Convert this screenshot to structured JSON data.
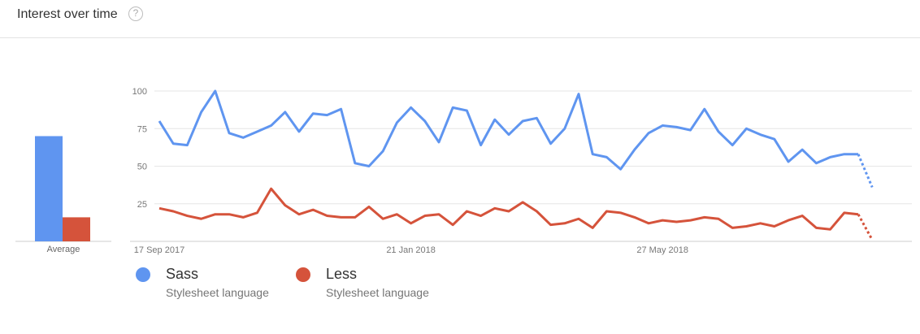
{
  "header": {
    "title": "Interest over time",
    "help_icon": "question-circle-icon"
  },
  "colors": {
    "sass": "#5f95f0",
    "less": "#d5533b",
    "grid": "#e6e6e6",
    "axis": "#cccccc"
  },
  "average": {
    "label": "Average",
    "values": [
      {
        "name": "Sass",
        "value": 70
      },
      {
        "name": "Less",
        "value": 16
      }
    ]
  },
  "legend": [
    {
      "name": "Sass",
      "sub": "Stylesheet language"
    },
    {
      "name": "Less",
      "sub": "Stylesheet language"
    }
  ],
  "chart_data": {
    "type": "line",
    "ylim": [
      0,
      100
    ],
    "yticks": [
      25,
      50,
      75,
      100
    ],
    "xtick_labels": [
      "17 Sep 2017",
      "21 Jan 2018",
      "27 May 2018"
    ],
    "xtick_indices": [
      0,
      18,
      36
    ],
    "partial_from_index": 50,
    "grid": true,
    "series": [
      {
        "name": "Sass",
        "values": [
          80,
          65,
          64,
          86,
          100,
          72,
          69,
          73,
          77,
          86,
          73,
          85,
          84,
          88,
          52,
          50,
          60,
          79,
          89,
          80,
          66,
          89,
          87,
          64,
          81,
          71,
          80,
          82,
          65,
          75,
          98,
          58,
          56,
          48,
          61,
          72,
          77,
          76,
          74,
          88,
          73,
          64,
          75,
          71,
          68,
          53,
          61,
          52,
          56,
          58,
          58,
          36
        ]
      },
      {
        "name": "Less",
        "values": [
          22,
          20,
          17,
          15,
          18,
          18,
          16,
          19,
          35,
          24,
          18,
          21,
          17,
          16,
          16,
          23,
          15,
          18,
          12,
          17,
          18,
          11,
          20,
          17,
          22,
          20,
          26,
          20,
          11,
          12,
          15,
          9,
          20,
          19,
          16,
          12,
          14,
          13,
          14,
          16,
          15,
          9,
          10,
          12,
          10,
          14,
          17,
          9,
          8,
          19,
          18,
          1
        ]
      }
    ]
  }
}
